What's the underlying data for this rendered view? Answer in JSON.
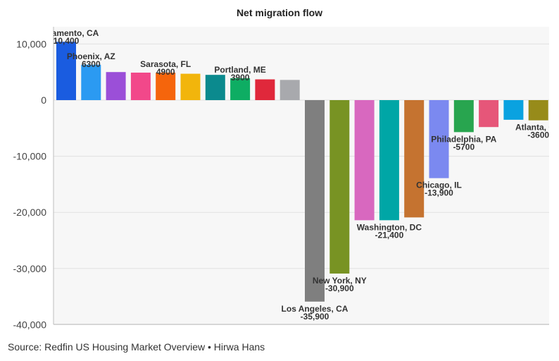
{
  "chart_data": {
    "type": "bar",
    "title": "Net migration flow",
    "xlabel": "",
    "ylabel": "",
    "ylim": [
      -40000,
      12000
    ],
    "yticks": [
      10000,
      0,
      -10000,
      -20000,
      -30000,
      -40000
    ],
    "ytick_labels": [
      "10,000",
      "0",
      "-10,000",
      "-20,000",
      "-30,000",
      "-40,000"
    ],
    "grid": true,
    "legend": "none",
    "categories": [
      "Sacramento, CA",
      "Phoenix, AZ",
      "",
      "",
      "Sarasota, FL",
      "",
      "",
      "Portland, ME",
      "",
      "",
      "Los Angeles, CA",
      "New York, NY",
      "",
      "Washington, DC",
      "",
      "Chicago, IL",
      "Philadelphia, PA",
      "",
      "",
      "Atlanta, GA"
    ],
    "values": [
      10400,
      6300,
      5000,
      4900,
      4900,
      4700,
      4500,
      3900,
      3700,
      3600,
      -35900,
      -30900,
      -21400,
      -21400,
      -20900,
      -13900,
      -5700,
      -4800,
      -3500,
      -3600
    ],
    "value_labels": [
      "10,400",
      "6300",
      "",
      "",
      "4900",
      "",
      "",
      "3900",
      "",
      "",
      "-35,900",
      "-30,900",
      "",
      "-21,400",
      "",
      "-13,900",
      "-5700",
      "",
      "",
      "-3600"
    ],
    "colors": [
      "#1a5ce0",
      "#2b9af2",
      "#9b4fd8",
      "#f2488a",
      "#f5650c",
      "#f2b50c",
      "#0b8a8e",
      "#0ead63",
      "#e0283b",
      "#a8a9ad",
      "#7f7f7f",
      "#789323",
      "#d868bf",
      "#00a6a6",
      "#c57330",
      "#7b89f0",
      "#28a54f",
      "#e65679",
      "#0aa2e0",
      "#978b1a"
    ]
  },
  "footer": {
    "source": "Source: Redfin US Housing Market Overview • Hirwa Hans"
  }
}
